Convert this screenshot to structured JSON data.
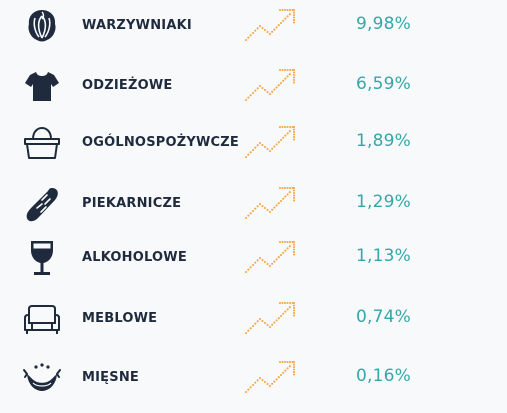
{
  "colors": {
    "background": "#f7f9fb",
    "label": "#1f2a3d",
    "value": "#36a7a8",
    "arrow": "#f5a545",
    "icon": "#1f2a3d"
  },
  "rows": [
    {
      "icon": "lettuce-icon",
      "label": "WARZYWNIAKI",
      "value": "9,98%",
      "trend": "up-arrow-icon"
    },
    {
      "icon": "tshirt-icon",
      "label": "ODZIEŻOWE",
      "value": "6,59%",
      "trend": "up-arrow-icon"
    },
    {
      "icon": "basket-icon",
      "label": "OGÓLNOSPOŻYWCZE",
      "value": "1,89%",
      "trend": "up-arrow-icon"
    },
    {
      "icon": "bread-icon",
      "label": "PIEKARNICZE",
      "value": "1,29%",
      "trend": "up-arrow-icon"
    },
    {
      "icon": "wine-glass-icon",
      "label": "ALKOHOLOWE",
      "value": "1,13%",
      "trend": "up-arrow-icon"
    },
    {
      "icon": "armchair-icon",
      "label": "MEBLOWE",
      "value": "0,74%",
      "trend": "up-arrow-icon"
    },
    {
      "icon": "sausage-icon",
      "label": "MIĘSNE",
      "value": "0,16%",
      "trend": "up-arrow-icon"
    }
  ]
}
